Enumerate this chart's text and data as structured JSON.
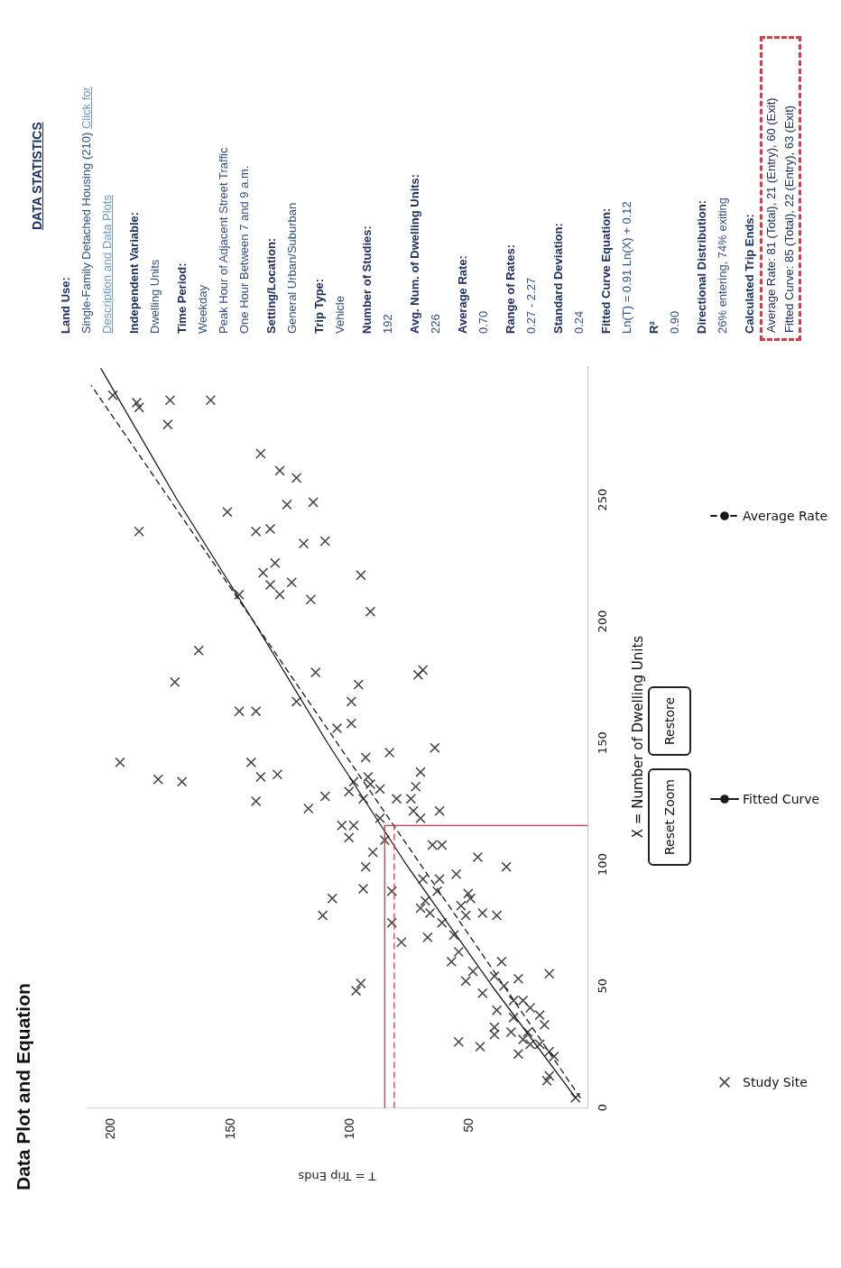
{
  "chart_data": {
    "type": "scatter",
    "title": "Data Plot and Equation",
    "xlabel": "T = Trip Ends",
    "ylabel": "X = Number of Dwelling Units",
    "xlim": [
      210,
      0
    ],
    "xticks": [
      200,
      150,
      100,
      50
    ],
    "ylim": [
      0,
      305
    ],
    "yticks": [
      0,
      50,
      100,
      150,
      200,
      250
    ],
    "legend": "right",
    "annotations": [
      "DATA STATISTICS",
      "Land Use:",
      "Single-Family Detached Housing (210)",
      "Click for Description and Data Plots",
      "Independent Variable:",
      "Dwelling Units",
      "Time Period:",
      "Weekday",
      "Peak Hour of Adjacent Street Traffic",
      "One Hour Between 7 and 9 a.m.",
      "Setting/Location:",
      "General Urban/Suburban",
      "Trip Type:",
      "Vehicle",
      "Number of Studies:",
      "192",
      "Avg. Num. of Dwelling Units:",
      "226",
      "Average Rate:",
      "0.70",
      "Range of Rates:",
      "0.27 - 2.27",
      "Standard Deviation:",
      "0.24",
      "Fitted Curve Equation:",
      "Ln(T) = 0.91 Ln(X) + 0.12",
      "R²",
      "0.90",
      "Directional Distribution:",
      "26% entering, 74% exiting",
      "Calculated Trip Ends:",
      "Average Rate: 81 (Total), 21 (Entry), 60 (Exit)",
      "Fitted Curve: 85 (Total), 22 (Entry), 63 (Exit)",
      "Reset Zoom",
      "Restore"
    ],
    "series": [
      {
        "name": "Study Site",
        "type": "scatter",
        "color": "#1a1a1a",
        "marker": "cross",
        "values": [
          293,
          290,
          288,
          291,
          291,
          281,
          269,
          262,
          259,
          245,
          248,
          249,
          237,
          237,
          238,
          232,
          233,
          224,
          220,
          215,
          216,
          211,
          211,
          209,
          219,
          204,
          188,
          175,
          179,
          174,
          178,
          180,
          167,
          167,
          163,
          163,
          156,
          158,
          142,
          142,
          135,
          134,
          136,
          137,
          126,
          144,
          146,
          148,
          138,
          136,
          134,
          133,
          131,
          130,
          132,
          128,
          127,
          127,
          127,
          123,
          122,
          119,
          122,
          119,
          116,
          116,
          111,
          110,
          108,
          108,
          105,
          103,
          99,
          99,
          96,
          94,
          94,
          90,
          89,
          86,
          88,
          86,
          89,
          85,
          82,
          79,
          83,
          79,
          80,
          79,
          80,
          76,
          76,
          70,
          68,
          71,
          64,
          60,
          60,
          55,
          56,
          53,
          52,
          54,
          50,
          47,
          51,
          48,
          44,
          44,
          40,
          41,
          38,
          37,
          34,
          33,
          31,
          30,
          31,
          28,
          27,
          25,
          26,
          26,
          22,
          23,
          21,
          13,
          11,
          4
        ],
        "x": [
          199,
          189,
          188,
          175,
          158,
          176,
          137,
          129,
          122,
          151,
          126,
          115,
          188,
          139,
          133,
          119,
          110,
          131,
          136,
          133,
          124,
          129,
          146,
          116,
          95,
          91,
          163,
          173,
          114,
          96,
          71,
          69,
          122,
          99,
          146,
          139,
          105,
          99,
          196,
          141,
          180,
          170,
          137,
          130,
          139,
          93,
          83,
          64,
          70,
          92,
          98,
          91,
          87,
          100,
          72,
          110,
          94,
          80,
          74,
          117,
          73,
          70,
          62,
          87,
          103,
          98,
          100,
          85,
          65,
          61,
          90,
          46,
          93,
          34,
          55,
          62,
          69,
          94,
          82,
          107,
          50,
          49,
          63,
          68,
          70,
          111,
          53,
          51,
          44,
          38,
          66,
          82,
          61,
          67,
          78,
          56,
          54,
          57,
          36,
          16,
          48,
          29,
          51,
          39,
          35,
          44,
          95,
          97,
          31,
          27,
          38,
          24,
          20,
          31,
          18,
          39,
          32,
          39,
          25,
          27,
          54,
          45,
          24,
          20,
          29,
          16,
          14,
          16,
          17,
          5
        ]
      },
      {
        "name": "Fitted Curve",
        "type": "line",
        "color": "#1a1a1a",
        "marker": "none",
        "line_style": "solid",
        "values": [
          4,
          50,
          100,
          150,
          200,
          250,
          304
        ],
        "x": [
          5,
          40,
          76,
          109,
          140,
          172,
          204
        ]
      },
      {
        "name": "Average Rate",
        "type": "line",
        "color": "#1a1a1a",
        "marker": "none",
        "line_style": "dashed",
        "values": [
          4,
          50,
          100,
          150,
          200,
          250,
          297
        ],
        "x": [
          3,
          35,
          70,
          105,
          140,
          175,
          208
        ]
      },
      {
        "type": "line",
        "color": "#e8343a",
        "marker": "none",
        "line_style": "solid",
        "values": [
          0,
          116,
          116
        ],
        "x": [
          85,
          85,
          0
        ]
      },
      {
        "type": "line",
        "color": "#e8343a",
        "marker": "none",
        "line_style": "dashed",
        "values": [
          0,
          116
        ],
        "x": [
          81,
          81
        ]
      }
    ]
  }
}
